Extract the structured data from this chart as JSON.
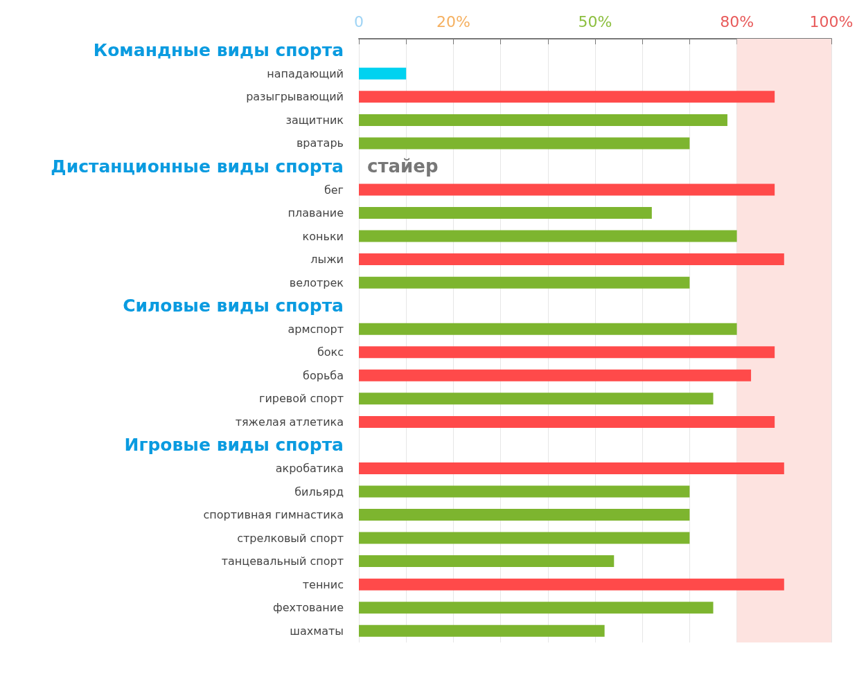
{
  "chart_data": {
    "type": "bar",
    "orientation": "horizontal",
    "categories": [
      null,
      "нападающий",
      "разыгрывающий",
      "защитник",
      "вратарь",
      null,
      "бег",
      "плавание",
      "коньки",
      "лыжи",
      "велотрек",
      null,
      "армспорт",
      "бокс",
      "борьба",
      "гиревой спорт",
      "тяжелая атлетика",
      null,
      "акробатика",
      "бильярд",
      "спортивная гимнастика",
      "стрелковый спорт",
      "танцевальный спорт",
      "теннис",
      "фехтование",
      "шахматы"
    ],
    "values": [
      null,
      10,
      88,
      78,
      70,
      null,
      88,
      62,
      80,
      90,
      70,
      null,
      80,
      88,
      83,
      75,
      88,
      null,
      90,
      70,
      70,
      70,
      54,
      90,
      75,
      52
    ],
    "colors": [
      null,
      "#00d2f0",
      "#ff4a4a",
      "#7db52f",
      "#7db52f",
      null,
      "#ff4a4a",
      "#7db52f",
      "#7db52f",
      "#ff4a4a",
      "#7db52f",
      null,
      "#7db52f",
      "#ff4a4a",
      "#ff4a4a",
      "#7db52f",
      "#ff4a4a",
      null,
      "#ff4a4a",
      "#7db52f",
      "#7db52f",
      "#7db52f",
      "#7db52f",
      "#ff4a4a",
      "#7db52f",
      "#7db52f"
    ],
    "xlim": [
      0,
      100
    ],
    "xticks": [
      {
        "value": 0,
        "label": "0"
      },
      {
        "value": 10,
        "label": null
      },
      {
        "value": 20,
        "label": "20%"
      },
      {
        "value": 30,
        "label": null
      },
      {
        "value": 40,
        "label": null
      },
      {
        "value": 50,
        "label": "50%"
      },
      {
        "value": 60,
        "label": null
      },
      {
        "value": 70,
        "label": null
      },
      {
        "value": 80,
        "label": "80%"
      },
      {
        "value": 90,
        "label": null
      },
      {
        "value": 100,
        "label": "100%"
      }
    ],
    "bands": [
      {
        "axis": "x",
        "from": 80,
        "to": 100,
        "color": "#fde3e0"
      }
    ],
    "annotations": [
      "Командные виды спорта",
      "Дистанционные виды спорта",
      "Силовые виды спорта",
      "Игровые виды спорта",
      "стайер"
    ],
    "grid": "x"
  }
}
